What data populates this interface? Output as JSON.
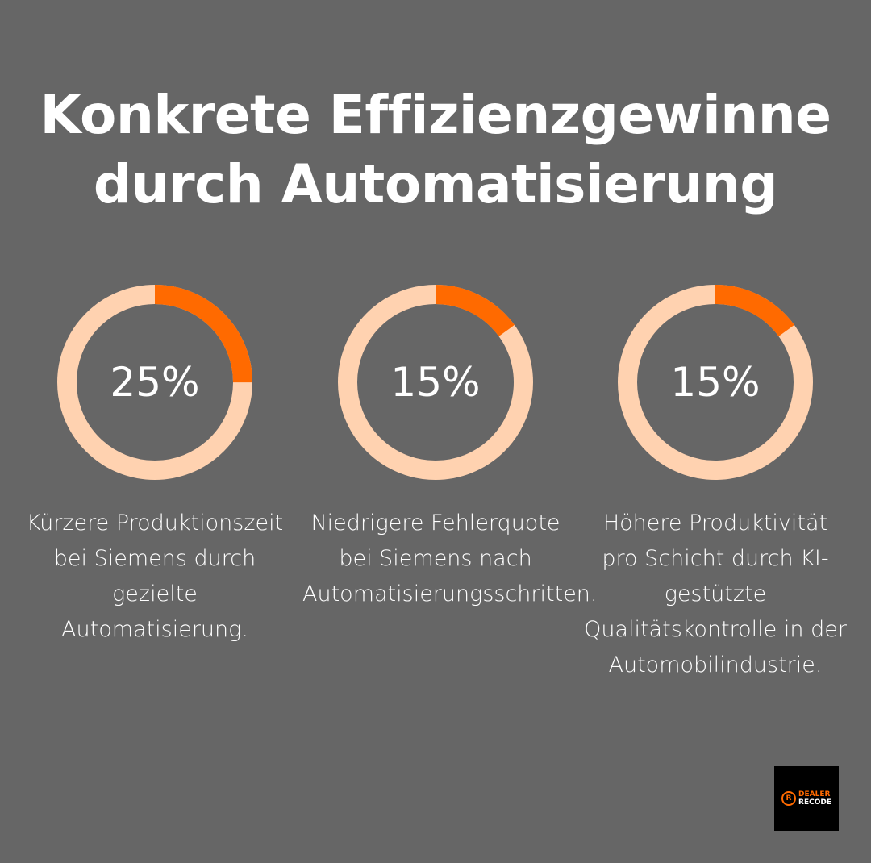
{
  "title": {
    "line1": "Konkrete Effizienzgewinne",
    "line2": "durch Automatisierung"
  },
  "colors": {
    "background": "#666666",
    "accent": "#ff6a00",
    "track": "#ffd2b0",
    "text": "#ffffff"
  },
  "cards": [
    {
      "value": 25,
      "label": "25%",
      "description": "Kürzere Produktionszeit bei Siemens durch gezielte Automatisierung."
    },
    {
      "value": 15,
      "label": "15%",
      "description": "Niedrigere Fehlerquote bei Siemens nach Automatisierungsschritten."
    },
    {
      "value": 15,
      "label": "15%",
      "description": "Höhere Produktivität pro Schicht durch KI-gestützte Qualitätskontrolle in der Automobilindustrie."
    }
  ],
  "logo": {
    "line1": "DEALER",
    "line2": "RECODE",
    "mark": "R"
  },
  "chart_data": {
    "type": "pie",
    "title": "Konkrete Effizienzgewinne durch Automatisierung",
    "categories": [
      "Kürzere Produktionszeit bei Siemens durch gezielte Automatisierung.",
      "Niedrigere Fehlerquote bei Siemens nach Automatisierungsschritten.",
      "Höhere Produktivität pro Schicht durch KI-gestützte Qualitätskontrolle in der Automobilindustrie."
    ],
    "values": [
      25,
      15,
      15
    ],
    "unit": "%",
    "style": "donut-progress",
    "xlabel": "",
    "ylabel": "",
    "ylim": [
      0,
      100
    ]
  }
}
